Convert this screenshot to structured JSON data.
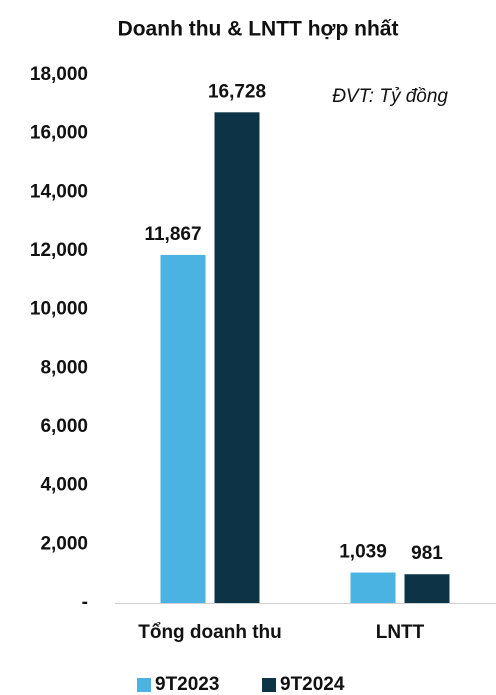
{
  "chart_data": {
    "type": "bar",
    "title": "Doanh thu & LNTT hợp nhất",
    "annotation": "ĐVT: Tỷ đồng",
    "categories": [
      "Tổng doanh thu",
      "LNTT"
    ],
    "series": [
      {
        "name": "9T2023",
        "color": "#4ab3e2",
        "values": [
          11867,
          1039
        ],
        "value_labels": [
          "11,867",
          "1,039"
        ]
      },
      {
        "name": "9T2024",
        "color": "#0d3446",
        "values": [
          16728,
          981
        ],
        "value_labels": [
          "16,728",
          "981"
        ]
      }
    ],
    "ylim": [
      0,
      18000
    ],
    "yticks": [
      {
        "value": 0,
        "label": "-"
      },
      {
        "value": 2000,
        "label": "2,000"
      },
      {
        "value": 4000,
        "label": "4,000"
      },
      {
        "value": 6000,
        "label": "6,000"
      },
      {
        "value": 8000,
        "label": "8,000"
      },
      {
        "value": 10000,
        "label": "10,000"
      },
      {
        "value": 12000,
        "label": "12,000"
      },
      {
        "value": 14000,
        "label": "14,000"
      },
      {
        "value": 16000,
        "label": "16,000"
      },
      {
        "value": 18000,
        "label": "18,000"
      }
    ],
    "legend": "bottom",
    "grid": false
  }
}
